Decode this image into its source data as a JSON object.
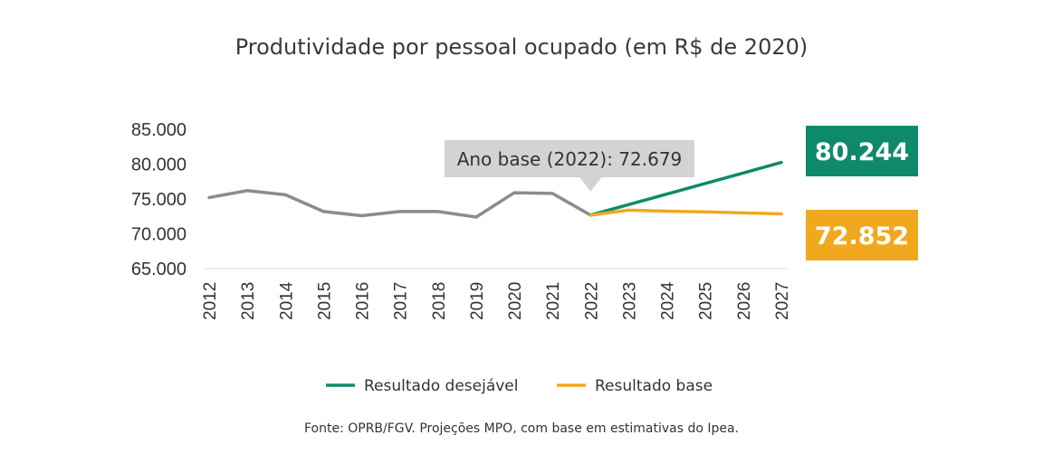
{
  "title": "Produtividade por pessoal ocupado (em R$ de 2020)",
  "source": "Fonte: OPRB/FGV. Projeções MPO, com base em estimativas do Ipea.",
  "colors": {
    "historical": "#8c8c8c",
    "desired": "#0e8a6b",
    "base": "#f0a81e",
    "callout_bg": "#d3d3d3",
    "grid": "#d9d9d9"
  },
  "chart_data": {
    "type": "line",
    "title": "Produtividade por pessoal ocupado (em R$ de 2020)",
    "xlabel": "",
    "ylabel": "",
    "ylim": [
      65000,
      85000
    ],
    "y_ticks": [
      "65.000",
      "70.000",
      "75.000",
      "80.000",
      "85.000"
    ],
    "y_tick_values": [
      65000,
      70000,
      75000,
      80000,
      85000
    ],
    "categories": [
      "2012",
      "2013",
      "2014",
      "2015",
      "2016",
      "2017",
      "2018",
      "2019",
      "2020",
      "2021",
      "2022",
      "2023",
      "2024",
      "2025",
      "2026",
      "2027"
    ],
    "grid": false,
    "legend_position": "bottom",
    "series": [
      {
        "key": "historical",
        "values": [
          75200,
          76200,
          75600,
          73200,
          72600,
          73200,
          73200,
          72400,
          75900,
          75800,
          72679,
          null,
          null,
          null,
          null,
          null
        ]
      },
      {
        "key": "desired",
        "name": "Resultado desejável",
        "values": [
          null,
          null,
          null,
          null,
          null,
          null,
          null,
          null,
          null,
          null,
          72679,
          74192,
          75705,
          77218,
          78731,
          80244
        ]
      },
      {
        "key": "base",
        "name": "Resultado base",
        "values": [
          null,
          null,
          null,
          null,
          null,
          null,
          null,
          null,
          null,
          null,
          72679,
          73400,
          73250,
          73150,
          73000,
          72852
        ]
      }
    ],
    "annotations": {
      "callout": {
        "text": "Ano base (2022): 72.679",
        "category": "2022"
      },
      "end_labels": [
        {
          "series": "desired",
          "text": "80.244"
        },
        {
          "series": "base",
          "text": "72.852"
        }
      ]
    }
  }
}
